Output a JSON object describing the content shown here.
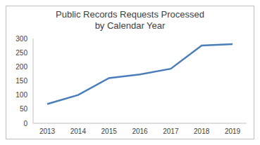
{
  "chart_data": {
    "type": "line",
    "title": "Public Records Requests Processed",
    "subtitle": "by Calendar Year",
    "categories": [
      "2013",
      "2014",
      "2015",
      "2016",
      "2017",
      "2018",
      "2019"
    ],
    "values": [
      68,
      100,
      160,
      173,
      193,
      275,
      280
    ],
    "color": "#4a7ebb",
    "ylim": [
      0,
      300
    ],
    "yticks": [
      0,
      50,
      100,
      150,
      200,
      250,
      300
    ],
    "grid": false
  }
}
